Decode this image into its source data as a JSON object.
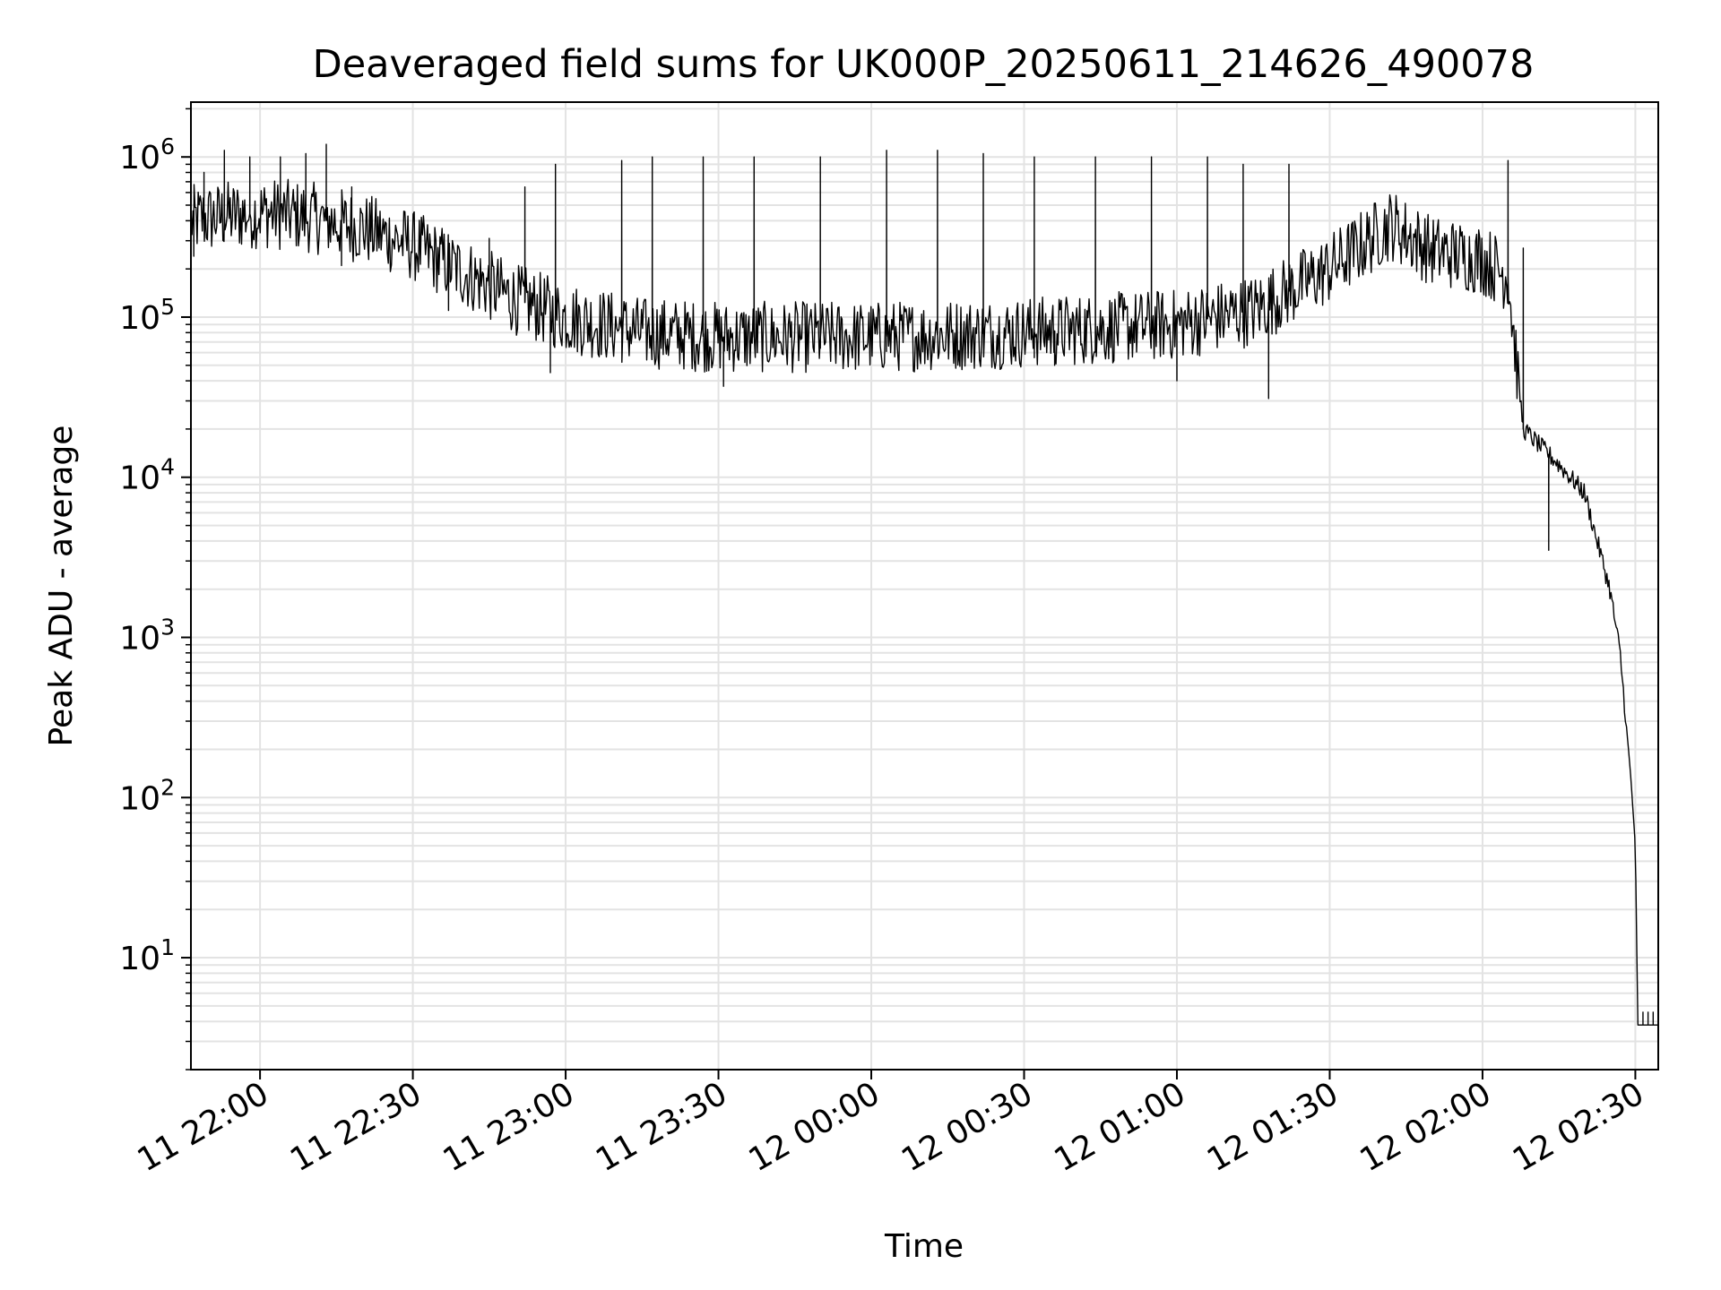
{
  "chart_data": {
    "type": "line",
    "title": "Deaveraged field sums for UK000P_20250611_214626_490078",
    "xlabel": "Time",
    "ylabel": "Peak ADU - average",
    "y_scale": "log",
    "ylim": [
      2,
      2200000
    ],
    "xlim": [
      "2025-06-11 21:46:26",
      "2025-06-12 02:34:30"
    ],
    "grid": true,
    "x_ticks": [
      {
        "value": "2025-06-11 22:00",
        "label": "11 22:00"
      },
      {
        "value": "2025-06-11 22:30",
        "label": "11 22:30"
      },
      {
        "value": "2025-06-11 23:00",
        "label": "11 23:00"
      },
      {
        "value": "2025-06-11 23:30",
        "label": "11 23:30"
      },
      {
        "value": "2025-06-12 00:00",
        "label": "12 00:00"
      },
      {
        "value": "2025-06-12 00:30",
        "label": "12 00:30"
      },
      {
        "value": "2025-06-12 01:00",
        "label": "12 01:00"
      },
      {
        "value": "2025-06-12 01:30",
        "label": "12 01:30"
      },
      {
        "value": "2025-06-12 02:00",
        "label": "12 02:00"
      },
      {
        "value": "2025-06-12 02:30",
        "label": "12 02:30"
      }
    ],
    "y_ticks": [
      {
        "value": 10,
        "base": "10",
        "exp": "1"
      },
      {
        "value": 100,
        "base": "10",
        "exp": "2"
      },
      {
        "value": 1000,
        "base": "10",
        "exp": "3"
      },
      {
        "value": 10000,
        "base": "10",
        "exp": "4"
      },
      {
        "value": 100000,
        "base": "10",
        "exp": "5"
      },
      {
        "value": 1000000,
        "base": "10",
        "exp": "6"
      }
    ],
    "series": [
      {
        "color": "#000000",
        "baseline": [
          [
            "2025-06-11 21:46:26",
            400000
          ],
          [
            "2025-06-11 22:00",
            450000
          ],
          [
            "2025-06-11 22:10",
            420000
          ],
          [
            "2025-06-11 22:20",
            360000
          ],
          [
            "2025-06-11 22:30",
            280000
          ],
          [
            "2025-06-11 22:40",
            190000
          ],
          [
            "2025-06-11 22:50",
            130000
          ],
          [
            "2025-06-11 23:00",
            100000
          ],
          [
            "2025-06-11 23:15",
            80000
          ],
          [
            "2025-06-11 23:30",
            75000
          ],
          [
            "2025-06-12 00:00",
            75000
          ],
          [
            "2025-06-12 00:30",
            80000
          ],
          [
            "2025-06-12 01:00",
            90000
          ],
          [
            "2025-06-12 01:15",
            110000
          ],
          [
            "2025-06-12 01:30",
            200000
          ],
          [
            "2025-06-12 01:42",
            380000
          ],
          [
            "2025-06-12 01:50",
            260000
          ],
          [
            "2025-06-12 02:00",
            230000
          ],
          [
            "2025-06-12 02:05",
            180000
          ],
          [
            "2025-06-12 02:08",
            20000
          ],
          [
            "2025-06-12 02:15",
            12000
          ],
          [
            "2025-06-12 02:20",
            8000
          ],
          [
            "2025-06-12 02:25",
            2000
          ],
          [
            "2025-06-12 02:27",
            800
          ],
          [
            "2025-06-12 02:29",
            150
          ],
          [
            "2025-06-12 02:30",
            50
          ],
          [
            "2025-06-12 02:30:30",
            3.8
          ],
          [
            "2025-06-12 02:34:30",
            3.8
          ]
        ],
        "spikes": [
          [
            "2025-06-11 21:49",
            800000
          ],
          [
            "2025-06-11 21:53",
            1100000
          ],
          [
            "2025-06-11 21:58",
            1000000
          ],
          [
            "2025-06-11 22:04",
            1000000
          ],
          [
            "2025-06-11 22:09",
            1050000
          ],
          [
            "2025-06-11 22:13",
            1200000
          ],
          [
            "2025-06-11 22:18",
            650000
          ],
          [
            "2025-06-11 22:45",
            310000
          ],
          [
            "2025-06-11 22:52",
            650000
          ],
          [
            "2025-06-11 22:58",
            900000
          ],
          [
            "2025-06-11 23:11",
            950000
          ],
          [
            "2025-06-11 23:17",
            1000000
          ],
          [
            "2025-06-11 23:27",
            1000000
          ],
          [
            "2025-06-11 23:37",
            1000000
          ],
          [
            "2025-06-11 23:50",
            1000000
          ],
          [
            "2025-06-12 00:03",
            1100000
          ],
          [
            "2025-06-12 00:13",
            1100000
          ],
          [
            "2025-06-12 00:22",
            1050000
          ],
          [
            "2025-06-12 00:32",
            1000000
          ],
          [
            "2025-06-12 00:44",
            1000000
          ],
          [
            "2025-06-12 00:55",
            1000000
          ],
          [
            "2025-06-12 01:06",
            1000000
          ],
          [
            "2025-06-12 01:13",
            900000
          ],
          [
            "2025-06-12 01:22",
            900000
          ],
          [
            "2025-06-12 02:05",
            950000
          ],
          [
            "2025-06-12 02:08",
            270000
          ]
        ],
        "dips": [
          [
            "2025-06-11 21:47",
            240000
          ],
          [
            "2025-06-11 22:16",
            210000
          ],
          [
            "2025-06-11 22:37",
            110000
          ],
          [
            "2025-06-11 22:57",
            45000
          ],
          [
            "2025-06-11 23:31",
            37000
          ],
          [
            "2025-06-12 00:36",
            50000
          ],
          [
            "2025-06-12 01:00",
            40000
          ],
          [
            "2025-06-12 01:18",
            31000
          ],
          [
            "2025-06-12 02:13",
            3500
          ]
        ]
      }
    ]
  }
}
